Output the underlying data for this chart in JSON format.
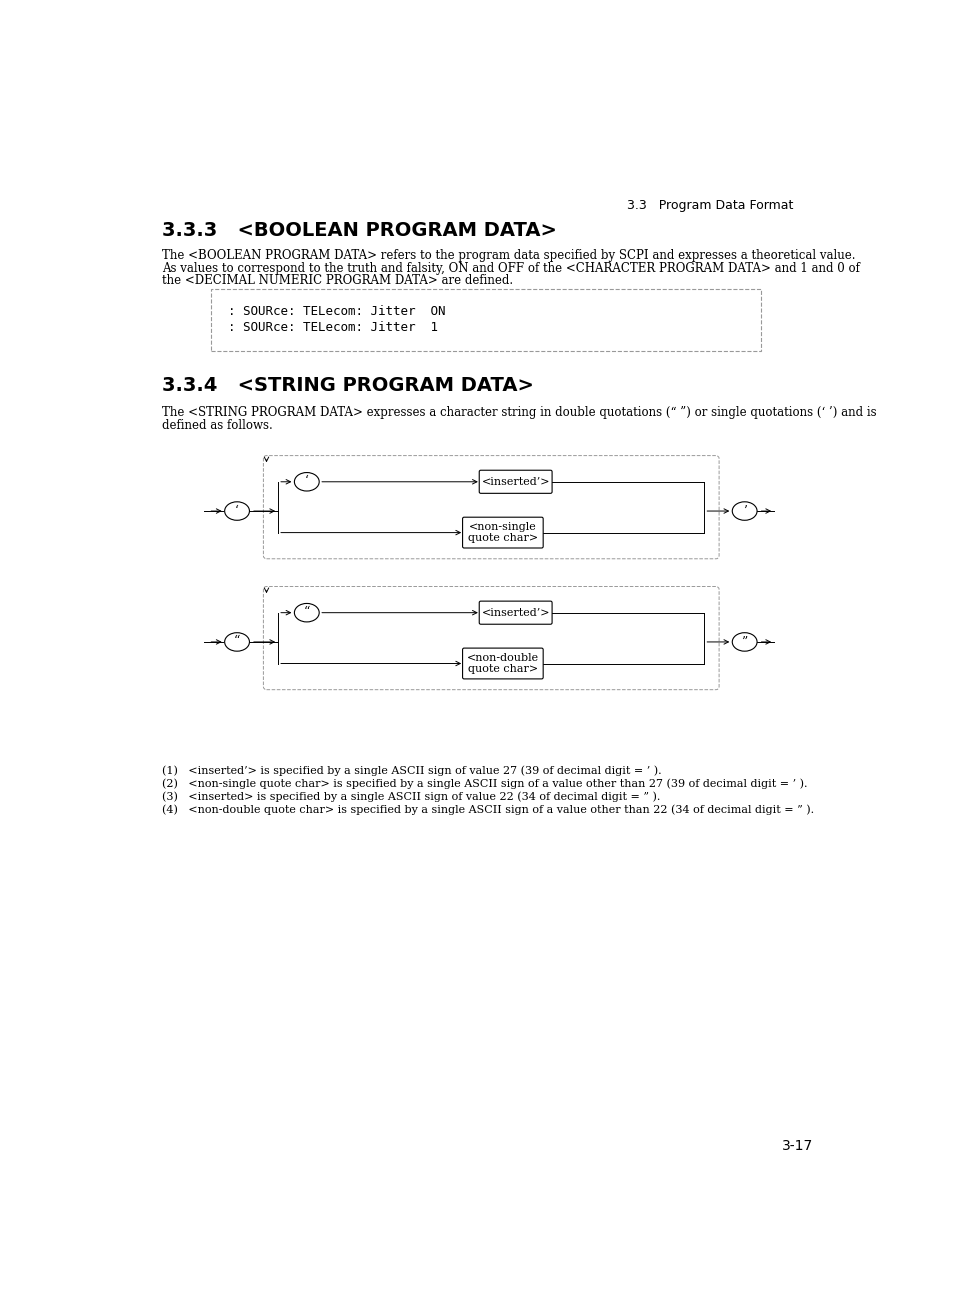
{
  "page_header": "3.3   Program Data Format",
  "section333_title": "3.3.3   <BOOLEAN PROGRAM DATA>",
  "section333_body1": "The <BOOLEAN PROGRAM DATA> refers to the program data specified by SCPI and expresses a theoretical value.",
  "section333_body2": "As values to correspond to the truth and falsity, ON and OFF of the <CHARACTER PROGRAM DATA> and 1 and 0 of",
  "section333_body3": "the <DECIMAL NUMERIC PROGRAM DATA> are defined.",
  "code_line1": ": SOURce: TELecom: Jitter  ON",
  "code_line2": ": SOURce: TELecom: Jitter  1",
  "section334_title": "3.3.4   <STRING PROGRAM DATA>",
  "section334_body1": "The <STRING PROGRAM DATA> expresses a character string in double quotations (“ ”) or single quotations (‘ ’) and is",
  "section334_body2": "defined as follows.",
  "note1": "(1)   <inserted’> is specified by a single ASCII sign of value 27 (39 of decimal digit = ’ ).",
  "note2": "(2)   <non-single quote char> is specified by a single ASCII sign of a value other than 27 (39 of decimal digit = ’ ).",
  "note3": "(3)   <inserted> is specified by a single ASCII sign of value 22 (34 of decimal digit = ” ).",
  "note4": "(4)   <non-double quote char> is specified by a single ASCII sign of a value other than 22 (34 of decimal digit = ” ).",
  "page_number": "3-17",
  "bg_color": "#ffffff",
  "text_color": "#000000",
  "diagram1": {
    "label_outer_left": "‘",
    "label_outer_right": "’",
    "label_inner_quote": "‘",
    "box1_text": "<inserted’>",
    "box2_text": "<non-single\nquote char>"
  },
  "diagram2": {
    "label_outer_left": "“",
    "label_outer_right": "”",
    "label_inner_quote": "“",
    "box1_text": "<inserted’>",
    "box2_text": "<non-double\nquote char>"
  }
}
